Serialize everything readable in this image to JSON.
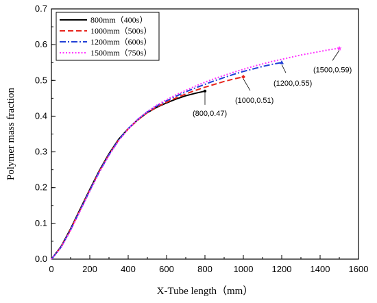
{
  "chart_data": {
    "type": "line",
    "xlabel": "X-Tube length（mm）",
    "ylabel": "Polymer mass fraction",
    "xlim": [
      0,
      1600
    ],
    "ylim": [
      0,
      0.7
    ],
    "x_ticks": [
      "0",
      "200",
      "400",
      "600",
      "800",
      "1000",
      "1200",
      "1400",
      "1600"
    ],
    "y_ticks": [
      "0.0",
      "0.1",
      "0.2",
      "0.3",
      "0.4",
      "0.5",
      "0.6",
      "0.7"
    ],
    "legend_position": "top-left",
    "grid": false,
    "series": [
      {
        "name": "800mm（400s）",
        "color": "#000000",
        "style": "solid",
        "x": [
          0,
          50,
          100,
          150,
          200,
          250,
          300,
          350,
          400,
          450,
          500,
          550,
          600,
          650,
          700,
          750,
          800
        ],
        "y": [
          0.0,
          0.035,
          0.085,
          0.14,
          0.195,
          0.248,
          0.295,
          0.335,
          0.365,
          0.39,
          0.41,
          0.425,
          0.437,
          0.448,
          0.457,
          0.464,
          0.47
        ]
      },
      {
        "name": "1000mm（500s）",
        "color": "#e8241c",
        "style": "dashed",
        "x": [
          0,
          50,
          100,
          150,
          200,
          250,
          300,
          350,
          400,
          450,
          500,
          550,
          600,
          650,
          700,
          750,
          800,
          850,
          900,
          950,
          1000
        ],
        "y": [
          0.0,
          0.034,
          0.083,
          0.138,
          0.193,
          0.246,
          0.293,
          0.333,
          0.364,
          0.389,
          0.41,
          0.426,
          0.439,
          0.451,
          0.462,
          0.472,
          0.481,
          0.489,
          0.497,
          0.504,
          0.51
        ]
      },
      {
        "name": "1200mm（600s）",
        "color": "#1f3fd6",
        "style": "dashdot",
        "x": [
          0,
          50,
          100,
          150,
          200,
          250,
          300,
          350,
          400,
          450,
          500,
          550,
          600,
          650,
          700,
          750,
          800,
          850,
          900,
          950,
          1000,
          1050,
          1100,
          1150,
          1200
        ],
        "y": [
          0.0,
          0.033,
          0.082,
          0.137,
          0.192,
          0.245,
          0.292,
          0.333,
          0.365,
          0.391,
          0.412,
          0.429,
          0.443,
          0.456,
          0.468,
          0.479,
          0.489,
          0.499,
          0.508,
          0.517,
          0.525,
          0.532,
          0.539,
          0.545,
          0.55
        ]
      },
      {
        "name": "1500mm（750s）",
        "color": "#ff33ff",
        "style": "dotted",
        "x": [
          0,
          50,
          100,
          150,
          200,
          250,
          300,
          350,
          400,
          450,
          500,
          550,
          600,
          650,
          700,
          750,
          800,
          850,
          900,
          950,
          1000,
          1050,
          1100,
          1150,
          1200,
          1250,
          1300,
          1350,
          1400,
          1450,
          1500
        ],
        "y": [
          0.0,
          0.032,
          0.08,
          0.135,
          0.19,
          0.243,
          0.29,
          0.331,
          0.364,
          0.391,
          0.413,
          0.431,
          0.446,
          0.46,
          0.472,
          0.484,
          0.495,
          0.505,
          0.514,
          0.523,
          0.531,
          0.539,
          0.546,
          0.553,
          0.559,
          0.565,
          0.571,
          0.576,
          0.581,
          0.586,
          0.59
        ]
      }
    ],
    "annotations": [
      {
        "text": "(800,0.47)",
        "x": 800,
        "y": 0.47,
        "marker": "circle",
        "color": "#000000"
      },
      {
        "text": "(1000,0.51)",
        "x": 1000,
        "y": 0.51,
        "marker": "diamond",
        "color": "#e8241c"
      },
      {
        "text": "(1200,0.55)",
        "x": 1200,
        "y": 0.55,
        "marker": "triangle",
        "color": "#1f3fd6"
      },
      {
        "text": "(1500,0.59)",
        "x": 1500,
        "y": 0.59,
        "marker": "star",
        "color": "#ff33ff"
      }
    ]
  }
}
